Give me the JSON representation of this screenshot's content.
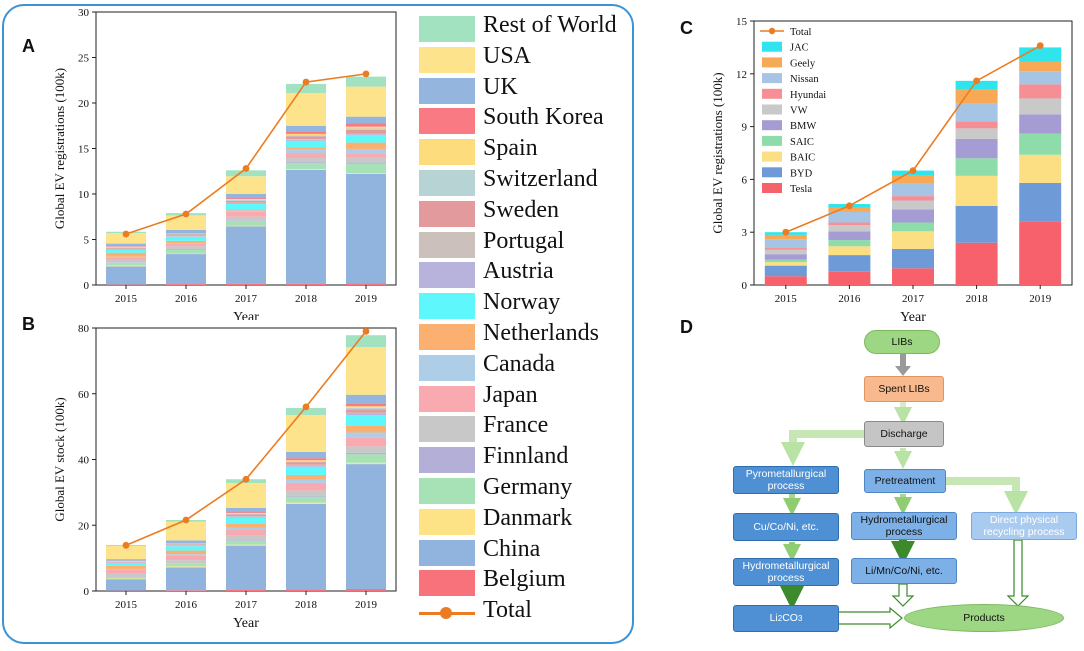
{
  "panels": {
    "a": "A",
    "b": "B",
    "c": "C",
    "d": "D"
  },
  "legend_left": {
    "items": [
      {
        "label": "Rest of World",
        "color": "#a3e2c0"
      },
      {
        "label": "USA",
        "color": "#fde38b"
      },
      {
        "label": "UK",
        "color": "#94b6de"
      },
      {
        "label": "South Korea",
        "color": "#f97a82"
      },
      {
        "label": "Spain",
        "color": "#fcdc7c"
      },
      {
        "label": "Switzerland",
        "color": "#b7d3d3"
      },
      {
        "label": "Sweden",
        "color": "#e39a9c"
      },
      {
        "label": "Portugal",
        "color": "#cbc0bc"
      },
      {
        "label": "Austria",
        "color": "#b7b3dc"
      },
      {
        "label": "Norway",
        "color": "#5ef8fc"
      },
      {
        "label": "Netherlands",
        "color": "#fbb071"
      },
      {
        "label": "Canada",
        "color": "#aecde7"
      },
      {
        "label": "Japan",
        "color": "#f8aab0"
      },
      {
        "label": "France",
        "color": "#c8c8c8"
      },
      {
        "label": "Finnland",
        "color": "#b4afd7"
      },
      {
        "label": "Germany",
        "color": "#a7e2b7"
      },
      {
        "label": "Danmark",
        "color": "#fde286"
      },
      {
        "label": "China",
        "color": "#91b4de"
      },
      {
        "label": "Belgium",
        "color": "#f7727a"
      }
    ],
    "total_label": "Total",
    "total_color": "#ec7c21"
  },
  "chart_data": [
    {
      "id": "A",
      "type": "bar",
      "stacked": true,
      "categories": [
        "2015",
        "2016",
        "2017",
        "2018",
        "2019"
      ],
      "xlabel": "Year",
      "ylabel": "Global EV registrations (100k)",
      "ylim": [
        0,
        30
      ],
      "yticks": [
        "0",
        "5",
        "10",
        "15",
        "20",
        "25",
        "30"
      ],
      "series": [
        {
          "name": "Belgium",
          "values": [
            0.05,
            0.1,
            0.15,
            0.15,
            0.2
          ]
        },
        {
          "name": "China",
          "values": [
            2.0,
            3.3,
            6.3,
            12.5,
            12.0
          ]
        },
        {
          "name": "Danmark",
          "values": [
            0.1,
            0.05,
            0.05,
            0.1,
            0.1
          ]
        },
        {
          "name": "Germany",
          "values": [
            0.3,
            0.4,
            0.55,
            0.65,
            1.05
          ]
        },
        {
          "name": "Finnland",
          "values": [
            0.05,
            0.05,
            0.05,
            0.1,
            0.1
          ]
        },
        {
          "name": "France",
          "values": [
            0.3,
            0.35,
            0.4,
            0.45,
            0.55
          ]
        },
        {
          "name": "Japan",
          "values": [
            0.25,
            0.25,
            0.55,
            0.5,
            0.4
          ]
        },
        {
          "name": "Canada",
          "values": [
            0.05,
            0.1,
            0.15,
            0.45,
            0.55
          ]
        },
        {
          "name": "Netherlands",
          "values": [
            0.45,
            0.25,
            0.1,
            0.25,
            0.7
          ]
        },
        {
          "name": "Norway",
          "values": [
            0.35,
            0.45,
            0.6,
            0.7,
            0.8
          ]
        },
        {
          "name": "Austria",
          "values": [
            0.05,
            0.05,
            0.1,
            0.1,
            0.1
          ]
        },
        {
          "name": "Portugal",
          "values": [
            0.05,
            0.05,
            0.05,
            0.1,
            0.1
          ]
        },
        {
          "name": "Sweden",
          "values": [
            0.1,
            0.15,
            0.2,
            0.3,
            0.4
          ]
        },
        {
          "name": "Switzerland",
          "values": [
            0.05,
            0.05,
            0.1,
            0.1,
            0.15
          ]
        },
        {
          "name": "Spain",
          "values": [
            0.05,
            0.05,
            0.1,
            0.15,
            0.2
          ]
        },
        {
          "name": "South Korea",
          "values": [
            0.05,
            0.05,
            0.1,
            0.3,
            0.35
          ]
        },
        {
          "name": "UK",
          "values": [
            0.3,
            0.35,
            0.45,
            0.6,
            0.75
          ]
        },
        {
          "name": "USA",
          "values": [
            1.15,
            1.6,
            1.95,
            3.6,
            3.3
          ]
        },
        {
          "name": "Rest of World",
          "values": [
            0.15,
            0.25,
            0.65,
            1.0,
            1.1
          ]
        }
      ],
      "total": [
        5.6,
        7.8,
        12.8,
        22.3,
        23.2
      ]
    },
    {
      "id": "B",
      "type": "bar",
      "stacked": true,
      "categories": [
        "2015",
        "2016",
        "2017",
        "2018",
        "2019"
      ],
      "xlabel": "Year",
      "ylabel": "Global EV stock (100k)",
      "ylim": [
        0,
        80
      ],
      "yticks": [
        "0",
        "20",
        "40",
        "60",
        "80"
      ],
      "series": [
        {
          "name": "Belgium",
          "values": [
            0.1,
            0.2,
            0.3,
            0.5,
            0.6
          ]
        },
        {
          "name": "China",
          "values": [
            3.5,
            7.0,
            13.5,
            26.0,
            38.0
          ]
        },
        {
          "name": "Danmark",
          "values": [
            0.2,
            0.3,
            0.3,
            0.4,
            0.4
          ]
        },
        {
          "name": "Germany",
          "values": [
            0.5,
            0.8,
            1.2,
            1.8,
            2.6
          ]
        },
        {
          "name": "Finnland",
          "values": [
            0.1,
            0.1,
            0.2,
            0.3,
            0.4
          ]
        },
        {
          "name": "France",
          "values": [
            0.8,
            1.0,
            1.3,
            1.6,
            2.0
          ]
        },
        {
          "name": "Japan",
          "values": [
            1.3,
            1.5,
            2.0,
            2.3,
            2.8
          ]
        },
        {
          "name": "Canada",
          "values": [
            0.2,
            0.3,
            0.5,
            0.9,
            1.4
          ]
        },
        {
          "name": "Netherlands",
          "values": [
            1.0,
            1.1,
            1.2,
            1.5,
            2.0
          ]
        },
        {
          "name": "Norway",
          "values": [
            0.8,
            1.3,
            1.8,
            2.5,
            3.3
          ]
        },
        {
          "name": "Austria",
          "values": [
            0.1,
            0.2,
            0.3,
            0.4,
            0.5
          ]
        },
        {
          "name": "Portugal",
          "values": [
            0.1,
            0.1,
            0.2,
            0.2,
            0.3
          ]
        },
        {
          "name": "Sweden",
          "values": [
            0.2,
            0.3,
            0.5,
            0.8,
            1.0
          ]
        },
        {
          "name": "Switzerland",
          "values": [
            0.1,
            0.1,
            0.2,
            0.3,
            0.4
          ]
        },
        {
          "name": "Spain",
          "values": [
            0.1,
            0.1,
            0.2,
            0.3,
            0.5
          ]
        },
        {
          "name": "South Korea",
          "values": [
            0.1,
            0.1,
            0.3,
            0.6,
            0.9
          ]
        },
        {
          "name": "UK",
          "values": [
            0.5,
            0.9,
            1.3,
            1.9,
            2.6
          ]
        },
        {
          "name": "USA",
          "values": [
            4.0,
            5.7,
            7.5,
            11.2,
            14.5
          ]
        },
        {
          "name": "Rest of World",
          "values": [
            0.3,
            0.5,
            1.2,
            2.2,
            3.6
          ]
        }
      ],
      "total": [
        13.9,
        21.6,
        34.0,
        56.0,
        79.0
      ]
    },
    {
      "id": "C",
      "type": "bar",
      "stacked": true,
      "categories": [
        "2015",
        "2016",
        "2017",
        "2018",
        "2019"
      ],
      "xlabel": "Year",
      "ylabel": "Global EV registrations (100k)",
      "ylim": [
        0,
        15
      ],
      "yticks": [
        "0",
        "3",
        "6",
        "9",
        "12",
        "15"
      ],
      "series": [
        {
          "name": "Tesla",
          "values": [
            0.5,
            0.75,
            0.95,
            2.4,
            3.6
          ]
        },
        {
          "name": "BYD",
          "values": [
            0.6,
            0.95,
            1.1,
            2.1,
            2.2
          ]
        },
        {
          "name": "BAIC",
          "values": [
            0.2,
            0.5,
            1.0,
            1.7,
            1.6
          ]
        },
        {
          "name": "SAIC",
          "values": [
            0.15,
            0.35,
            0.5,
            1.0,
            1.2
          ]
        },
        {
          "name": "BMW",
          "values": [
            0.3,
            0.5,
            0.75,
            1.1,
            1.1
          ]
        },
        {
          "name": "VW",
          "values": [
            0.25,
            0.35,
            0.5,
            0.6,
            0.9
          ]
        },
        {
          "name": "Hyundai",
          "values": [
            0.1,
            0.15,
            0.25,
            0.4,
            0.8
          ]
        },
        {
          "name": "Nissan",
          "values": [
            0.5,
            0.6,
            0.7,
            1.0,
            0.75
          ]
        },
        {
          "name": "Geely",
          "values": [
            0.25,
            0.25,
            0.5,
            0.8,
            0.55
          ]
        },
        {
          "name": "JAC",
          "values": [
            0.15,
            0.2,
            0.25,
            0.5,
            0.8
          ]
        }
      ],
      "total": [
        3.0,
        4.5,
        6.5,
        11.6,
        13.6
      ],
      "legend": [
        {
          "label": "Total",
          "color": "#ec7c21"
        },
        {
          "label": "JAC",
          "color": "#30e4ee"
        },
        {
          "label": "Geely",
          "color": "#f8a955"
        },
        {
          "label": "Nissan",
          "color": "#a6c4e4"
        },
        {
          "label": "Hyundai",
          "color": "#f58e95"
        },
        {
          "label": "VW",
          "color": "#c9c9c9"
        },
        {
          "label": "BMW",
          "color": "#a49cd2"
        },
        {
          "label": "SAIC",
          "color": "#8edcaa"
        },
        {
          "label": "BAIC",
          "color": "#fcdf83"
        },
        {
          "label": "BYD",
          "color": "#6f9ad8"
        },
        {
          "label": "Tesla",
          "color": "#f6616b"
        }
      ]
    }
  ],
  "flow": {
    "libs": "LIBs",
    "spent": "Spent LIBs",
    "discharge": "Discharge",
    "pyro": "Pyrometallurgical process",
    "pretreat": "Pretreatment",
    "cuconi": "Cu/Co/Ni, etc.",
    "hydro_mid": "Hydrometallurgical process",
    "direct": "Direct physical recycling process",
    "hydro_left": "Hydrometallurgical process",
    "limnconi": "Li/Mn/Co/Ni, etc.",
    "li2co3": "Li2CO3",
    "products": "Products"
  }
}
